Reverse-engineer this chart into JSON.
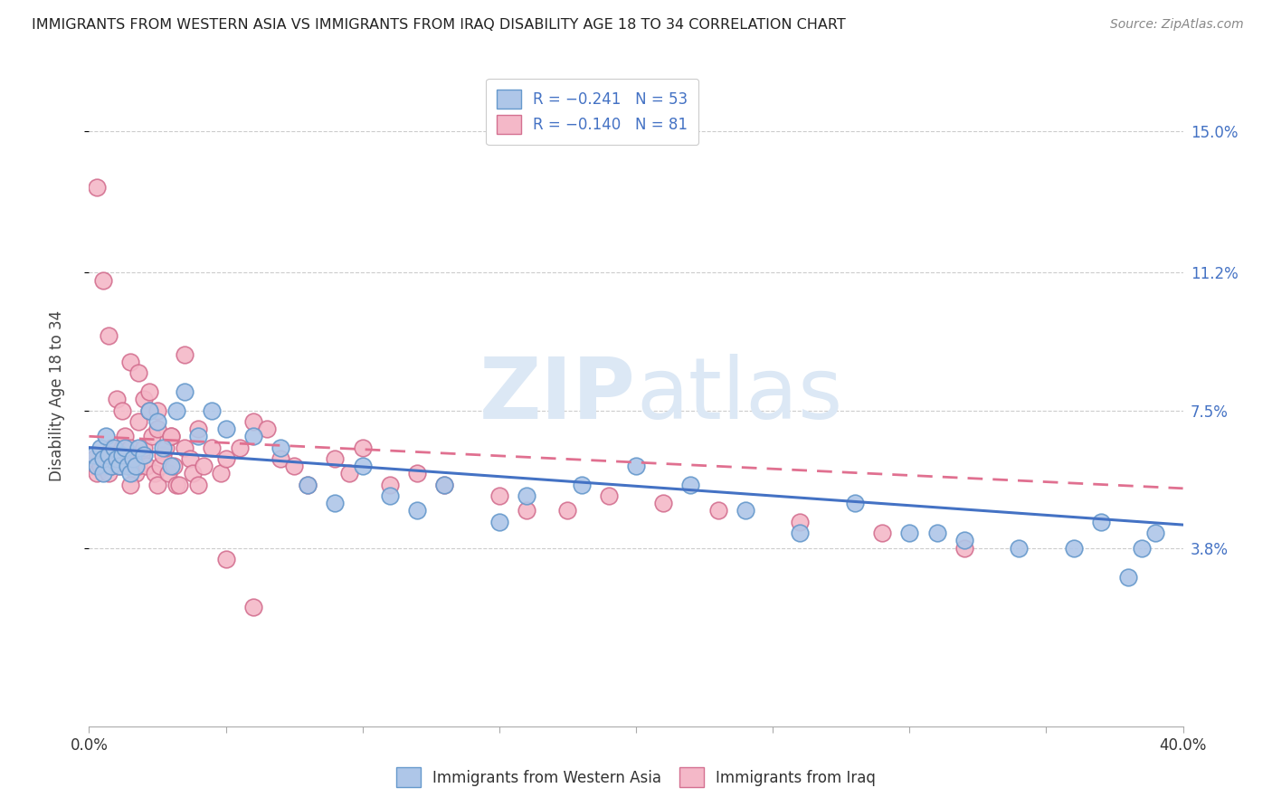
{
  "title": "IMMIGRANTS FROM WESTERN ASIA VS IMMIGRANTS FROM IRAQ DISABILITY AGE 18 TO 34 CORRELATION CHART",
  "source": "Source: ZipAtlas.com",
  "ylabel": "Disability Age 18 to 34",
  "ytick_labels": [
    "3.8%",
    "7.5%",
    "11.2%",
    "15.0%"
  ],
  "ytick_values": [
    0.038,
    0.075,
    0.112,
    0.15
  ],
  "xlim": [
    0.0,
    0.4
  ],
  "ylim": [
    -0.01,
    0.168
  ],
  "western_asia_color": "#aec6e8",
  "western_asia_edge": "#6699cc",
  "iraq_color": "#f4b8c8",
  "iraq_edge": "#d47090",
  "trend_blue": "#4472c4",
  "trend_pink": "#e07090",
  "watermark_color": "#dce8f5",
  "blue_intercept": 0.065,
  "blue_slope": -0.052,
  "pink_intercept": 0.068,
  "pink_slope": -0.035,
  "western_asia_x": [
    0.002,
    0.003,
    0.004,
    0.005,
    0.005,
    0.006,
    0.007,
    0.008,
    0.009,
    0.01,
    0.011,
    0.012,
    0.013,
    0.014,
    0.015,
    0.016,
    0.017,
    0.018,
    0.02,
    0.022,
    0.025,
    0.027,
    0.03,
    0.032,
    0.035,
    0.04,
    0.045,
    0.05,
    0.06,
    0.07,
    0.08,
    0.09,
    0.1,
    0.11,
    0.12,
    0.13,
    0.15,
    0.16,
    0.18,
    0.2,
    0.22,
    0.24,
    0.26,
    0.28,
    0.3,
    0.31,
    0.32,
    0.34,
    0.36,
    0.37,
    0.38,
    0.385,
    0.39
  ],
  "western_asia_y": [
    0.063,
    0.06,
    0.065,
    0.058,
    0.062,
    0.068,
    0.063,
    0.06,
    0.065,
    0.062,
    0.06,
    0.063,
    0.065,
    0.06,
    0.058,
    0.062,
    0.06,
    0.065,
    0.063,
    0.075,
    0.072,
    0.065,
    0.06,
    0.075,
    0.08,
    0.068,
    0.075,
    0.07,
    0.068,
    0.065,
    0.055,
    0.05,
    0.06,
    0.052,
    0.048,
    0.055,
    0.045,
    0.052,
    0.055,
    0.06,
    0.055,
    0.048,
    0.042,
    0.05,
    0.042,
    0.042,
    0.04,
    0.038,
    0.038,
    0.045,
    0.03,
    0.038,
    0.042
  ],
  "iraq_x": [
    0.001,
    0.002,
    0.003,
    0.003,
    0.004,
    0.005,
    0.005,
    0.006,
    0.007,
    0.007,
    0.008,
    0.008,
    0.009,
    0.01,
    0.01,
    0.011,
    0.012,
    0.012,
    0.013,
    0.014,
    0.015,
    0.015,
    0.016,
    0.017,
    0.018,
    0.018,
    0.019,
    0.02,
    0.02,
    0.021,
    0.022,
    0.023,
    0.024,
    0.025,
    0.025,
    0.026,
    0.027,
    0.028,
    0.029,
    0.03,
    0.031,
    0.032,
    0.033,
    0.035,
    0.037,
    0.038,
    0.04,
    0.042,
    0.045,
    0.048,
    0.05,
    0.055,
    0.06,
    0.065,
    0.07,
    0.075,
    0.08,
    0.09,
    0.095,
    0.1,
    0.11,
    0.12,
    0.13,
    0.15,
    0.16,
    0.175,
    0.19,
    0.21,
    0.23,
    0.26,
    0.29,
    0.32,
    0.015,
    0.018,
    0.022,
    0.025,
    0.03,
    0.035,
    0.04,
    0.05,
    0.06
  ],
  "iraq_y": [
    0.06,
    0.062,
    0.135,
    0.058,
    0.06,
    0.062,
    0.11,
    0.06,
    0.058,
    0.095,
    0.06,
    0.065,
    0.063,
    0.062,
    0.078,
    0.06,
    0.065,
    0.075,
    0.068,
    0.062,
    0.065,
    0.088,
    0.063,
    0.058,
    0.06,
    0.072,
    0.063,
    0.065,
    0.078,
    0.06,
    0.075,
    0.068,
    0.058,
    0.07,
    0.055,
    0.06,
    0.063,
    0.065,
    0.058,
    0.068,
    0.06,
    0.055,
    0.055,
    0.065,
    0.062,
    0.058,
    0.07,
    0.06,
    0.065,
    0.058,
    0.062,
    0.065,
    0.072,
    0.07,
    0.062,
    0.06,
    0.055,
    0.062,
    0.058,
    0.065,
    0.055,
    0.058,
    0.055,
    0.052,
    0.048,
    0.048,
    0.052,
    0.05,
    0.048,
    0.045,
    0.042,
    0.038,
    0.055,
    0.085,
    0.08,
    0.075,
    0.068,
    0.09,
    0.055,
    0.035,
    0.022
  ]
}
